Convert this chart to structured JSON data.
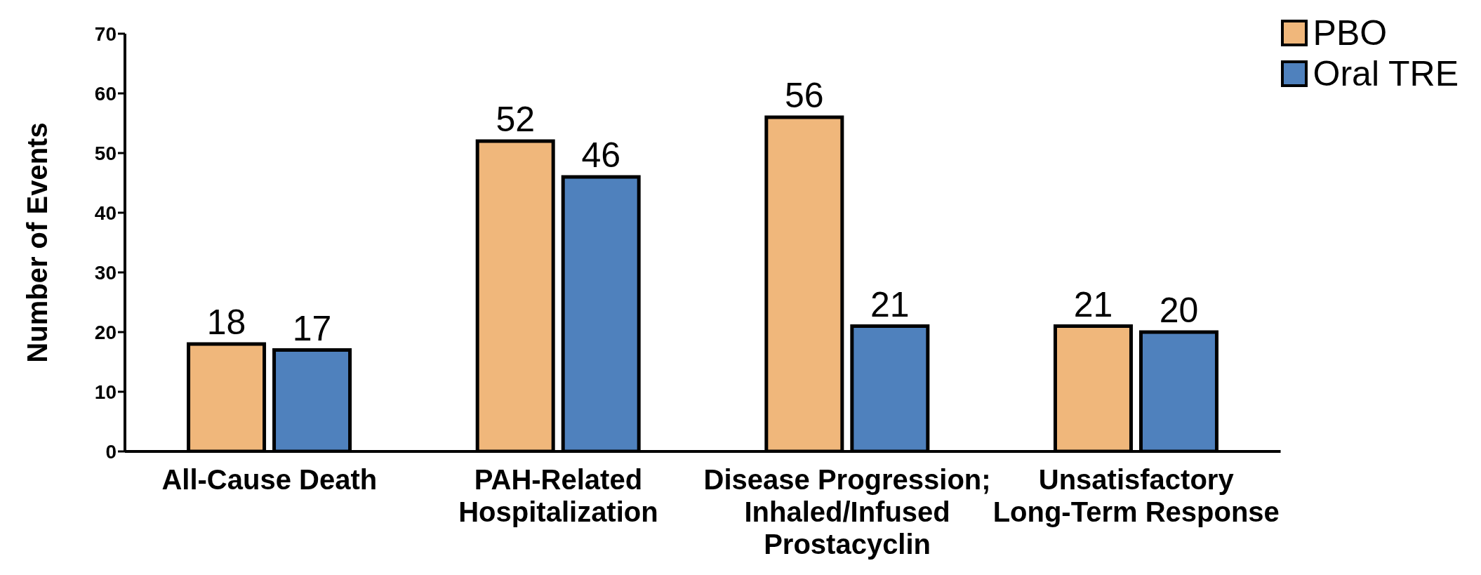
{
  "chart_data": {
    "type": "bar",
    "ylabel": "Number of Events",
    "categories": [
      "All-Cause Death",
      "PAH-Related Hospitalization",
      "Disease Progression; Inhaled/Infused Prostacyclin",
      "Unsatisfactory Long-Term Response"
    ],
    "series": [
      {
        "name": "PBO",
        "color": "#f0b77b",
        "values": [
          18,
          52,
          56,
          21
        ]
      },
      {
        "name": "Oral TRE",
        "color": "#4f81bd",
        "values": [
          17,
          46,
          21,
          20
        ]
      }
    ],
    "ylim": [
      0,
      70
    ],
    "yticks": [
      0,
      10,
      20,
      30,
      40,
      50,
      60,
      70
    ],
    "data_labels": true,
    "legend": "top right",
    "grid": false
  }
}
